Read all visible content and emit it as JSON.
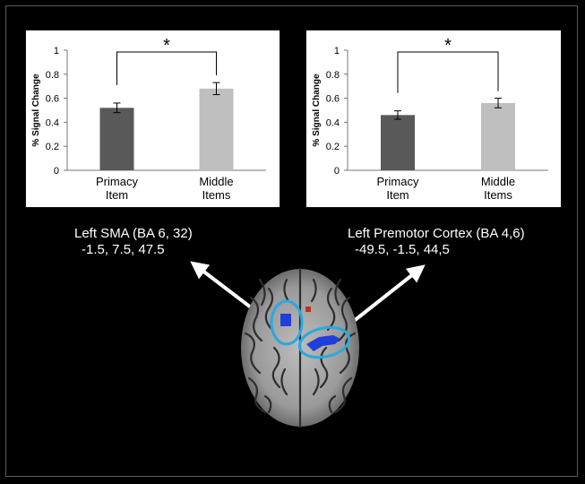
{
  "chart_data": [
    {
      "type": "bar",
      "categories": [
        [
          "Primacy",
          "Item"
        ],
        [
          "Middle",
          "Items"
        ]
      ],
      "values": [
        0.52,
        0.68
      ],
      "errors": [
        0.04,
        0.05
      ],
      "colors": [
        "#595959",
        "#bfbfbf"
      ],
      "ylabel": "% Signal Change",
      "ylim": [
        0,
        1
      ],
      "yticks": [
        "0",
        "0.2",
        "0.4",
        "0.6",
        "0.8",
        "1"
      ],
      "significance": "*",
      "grid": false
    },
    {
      "type": "bar",
      "categories": [
        [
          "Primacy",
          "Item"
        ],
        [
          "Middle",
          "Items"
        ]
      ],
      "values": [
        0.46,
        0.56
      ],
      "errors": [
        0.035,
        0.04
      ],
      "colors": [
        "#595959",
        "#bfbfbf"
      ],
      "ylabel": "% Signal Change",
      "ylim": [
        0,
        1
      ],
      "yticks": [
        "0",
        "0.2",
        "0.4",
        "0.6",
        "0.8",
        "1"
      ],
      "significance": "*",
      "grid": false
    }
  ],
  "regions": {
    "left": {
      "name": "Left SMA (BA 6, 32)",
      "coords": "-1.5, 7.5, 47.5"
    },
    "right": {
      "name": "Left Premotor Cortex (BA 4,6)",
      "coords": "-49.5, -1.5, 44,5"
    }
  },
  "colors": {
    "background": "#000000",
    "activation_blue": "#1f3fd8",
    "activation_red": "#c0301a",
    "roi_outline": "#2aa8e0",
    "arrow": "#ffffff"
  }
}
